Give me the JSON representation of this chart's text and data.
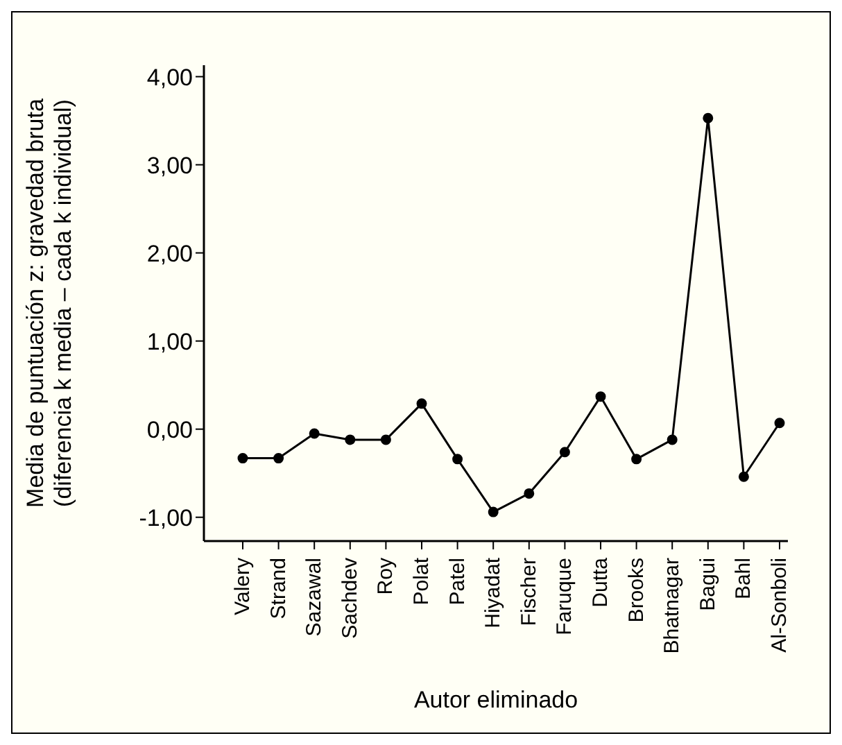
{
  "chart_data": {
    "type": "line",
    "xlabel": "Autor eliminado",
    "ylabel": "Media de puntuación z: gravedad bruta\n(diferencia k media – cada k individual)",
    "categories": [
      "Valery",
      "Strand",
      "Sazawal",
      "Sachdev",
      "Roy",
      "Polat",
      "Patel",
      "Hiyadat",
      "Fischer",
      "Faruque",
      "Dutta",
      "Brooks",
      "Bhatnagar",
      "Bagui",
      "Bahl",
      "Al-Sonboli"
    ],
    "series": [
      {
        "color": "#000000",
        "values": [
          -0.33,
          -0.33,
          -0.05,
          -0.12,
          -0.12,
          0.29,
          -0.34,
          -0.94,
          -0.73,
          -0.26,
          0.37,
          -0.34,
          -0.12,
          3.53,
          -0.54,
          0.07
        ]
      }
    ],
    "ylim": [
      -1.27,
      4.13
    ],
    "yticks": [
      {
        "value": -1,
        "label": "-1,00"
      },
      {
        "value": 0,
        "label": "0,00"
      },
      {
        "value": 1,
        "label": "1,00"
      },
      {
        "value": 2,
        "label": "2,00"
      },
      {
        "value": 3,
        "label": "3,00"
      },
      {
        "value": 4,
        "label": "4,00"
      }
    ],
    "grid": false,
    "legend": false,
    "marker": "circle",
    "line_style": "solid"
  }
}
